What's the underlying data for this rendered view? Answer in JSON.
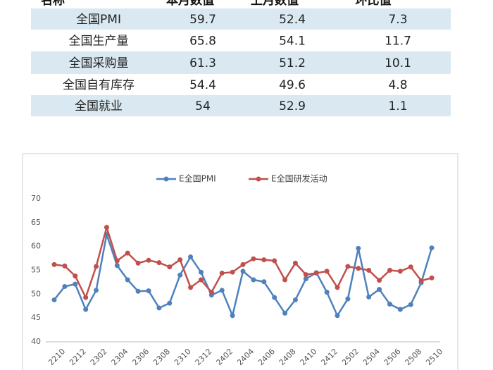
{
  "table": {
    "header": [
      "名称",
      "本月数值",
      "上月数值",
      "环比值"
    ],
    "rows": [
      [
        "全国PMI",
        59.7,
        52.4,
        7.3
      ],
      [
        "全国生产量",
        65.8,
        54.1,
        11.7
      ],
      [
        "全国采购量",
        61.3,
        51.2,
        10.1
      ],
      [
        "全国自有库存",
        54.4,
        49.6,
        4.8
      ],
      [
        "全国就业",
        54,
        52.9,
        1.1
      ]
    ]
  },
  "chart_data": {
    "type": "line",
    "categories": [
      "2210",
      null,
      "2212",
      null,
      "2302",
      null,
      "2304",
      null,
      "2306",
      null,
      "2308",
      null,
      "2310",
      null,
      "2312",
      null,
      "2402",
      null,
      "2404",
      null,
      "2406",
      null,
      "2408",
      null,
      "2410",
      null,
      "2412",
      null,
      "2502",
      null,
      "2504",
      null,
      "2506",
      null,
      "2508",
      null,
      "2510"
    ],
    "series": [
      {
        "name": "E全国PMI",
        "color": "#4f81bd",
        "values": [
          48.8,
          51.6,
          52.1,
          46.8,
          50.8,
          62.5,
          56.0,
          53.0,
          50.6,
          50.7,
          47.1,
          48.1,
          54.0,
          57.8,
          54.6,
          49.8,
          50.8,
          45.5,
          54.8,
          53.0,
          52.6,
          49.3,
          46.0,
          48.8,
          53.2,
          54.5,
          50.4,
          45.5,
          49.0,
          59.6,
          49.4,
          51.0,
          47.9,
          46.8,
          47.8,
          52.4,
          59.7
        ]
      },
      {
        "name": "E全国研发活动",
        "color": "#c0504d",
        "values": [
          56.2,
          55.9,
          53.8,
          49.3,
          55.8,
          64.0,
          57.0,
          58.6,
          56.5,
          57.1,
          56.6,
          55.7,
          57.2,
          51.4,
          53.0,
          50.4,
          54.4,
          54.6,
          56.2,
          57.4,
          57.2,
          57.0,
          53.0,
          56.5,
          54.1,
          54.4,
          54.8,
          51.4,
          55.8,
          55.4,
          55.0,
          52.9,
          55.0,
          54.8,
          55.7,
          52.8,
          53.4
        ]
      }
    ],
    "ylim": [
      40,
      70
    ],
    "yticks": [
      40,
      45,
      50,
      55,
      60,
      65,
      70
    ],
    "legend": "top",
    "grid": false
  }
}
